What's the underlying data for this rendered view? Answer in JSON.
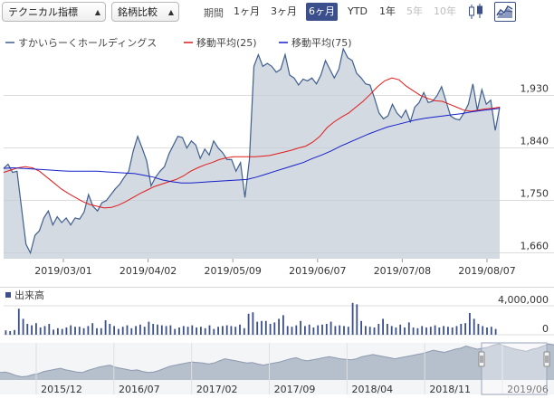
{
  "toolbar": {
    "indicator_select": "テクニカル指標",
    "compare_select": "銘柄比較",
    "period_label": "期間",
    "periods": [
      "1ヶ月",
      "3ヶ月",
      "6ヶ月",
      "YTD",
      "1年",
      "5年",
      "10年"
    ],
    "active_period": "6ヶ月",
    "disabled_periods": [
      "5年",
      "10年"
    ],
    "chart_type_icons": [
      "candlestick-icon",
      "area-line-icon"
    ],
    "active_chart_type": "area-line-icon"
  },
  "legend": {
    "price": "すかいらーくホールディングス",
    "ma25": "移動平均(25)",
    "ma75": "移動平均(75)"
  },
  "colors": {
    "price_line": "#3f5f8f",
    "price_fill": "#c5cdd8",
    "ma25": "#e11b1b",
    "ma75": "#1520c8",
    "volume": "#3a4f8c",
    "active": "#3a4f8c"
  },
  "chart_data": [
    {
      "type": "area",
      "x_labels": [
        "2019/03/01",
        "2019/04/02",
        "2019/05/09",
        "2019/06/07",
        "2019/07/08",
        "2019/08/07"
      ],
      "yticks": [
        1660,
        1750,
        1840,
        1930
      ],
      "ylim": [
        1650,
        2010
      ],
      "series": [
        {
          "name": "すかいらーくホールディングス",
          "values": [
            1805,
            1812,
            1798,
            1800,
            1738,
            1675,
            1660,
            1690,
            1698,
            1720,
            1732,
            1708,
            1722,
            1712,
            1720,
            1708,
            1720,
            1718,
            1730,
            1760,
            1740,
            1732,
            1746,
            1750,
            1760,
            1770,
            1778,
            1790,
            1800,
            1835,
            1860,
            1840,
            1818,
            1775,
            1790,
            1800,
            1808,
            1830,
            1845,
            1860,
            1858,
            1840,
            1852,
            1845,
            1822,
            1838,
            1828,
            1852,
            1840,
            1832,
            1820,
            1820,
            1800,
            1815,
            1755,
            1820,
            1980,
            2000,
            1980,
            1985,
            1980,
            1970,
            1975,
            2000,
            1965,
            1960,
            1948,
            1958,
            1955,
            1960,
            1950,
            1965,
            1990,
            1975,
            1960,
            1975,
            2010,
            1995,
            1990,
            1968,
            1960,
            1950,
            1948,
            1925,
            1900,
            1890,
            1895,
            1915,
            1900,
            1892,
            1905,
            1885,
            1910,
            1918,
            1935,
            1918,
            1920,
            1930,
            1945,
            1920,
            1895,
            1890,
            1888,
            1900,
            1915,
            1950,
            1905,
            1940,
            1915,
            1922,
            1870,
            1910
          ],
          "visible_days_only": true
        },
        {
          "name": "移動平均(25)",
          "values": [
            1798,
            1802,
            1806,
            1808,
            1806,
            1800,
            1790,
            1780,
            1770,
            1762,
            1755,
            1748,
            1743,
            1740,
            1737,
            1738,
            1742,
            1748,
            1755,
            1762,
            1768,
            1774,
            1778,
            1782,
            1786,
            1792,
            1800,
            1806,
            1811,
            1815,
            1820,
            1823,
            1825,
            1825,
            1825,
            1825,
            1826,
            1827,
            1830,
            1833,
            1836,
            1840,
            1843,
            1850,
            1860,
            1875,
            1885,
            1893,
            1900,
            1910,
            1920,
            1932,
            1945,
            1955,
            1960,
            1957,
            1946,
            1938,
            1930,
            1925,
            1921,
            1920,
            1915,
            1910,
            1905,
            1903,
            1905,
            1907,
            1908,
            1910
          ]
        },
        {
          "name": "移動平均(75)",
          "values": [
            1805,
            1806,
            1805,
            1804,
            1803,
            1802,
            1801,
            1800,
            1800,
            1800,
            1800,
            1799,
            1798,
            1797,
            1796,
            1793,
            1790,
            1785,
            1782,
            1780,
            1780,
            1781,
            1782,
            1783,
            1784,
            1785,
            1786,
            1790,
            1795,
            1800,
            1805,
            1810,
            1815,
            1822,
            1828,
            1835,
            1843,
            1850,
            1857,
            1864,
            1870,
            1876,
            1880,
            1884,
            1888,
            1891,
            1893,
            1895,
            1897,
            1899,
            1902,
            1904,
            1906,
            1908
          ]
        }
      ]
    },
    {
      "type": "bar",
      "title": "出来高",
      "yticks": [
        0,
        4000000
      ],
      "ylim": [
        0,
        4500000
      ],
      "values": [
        600000,
        500000,
        650000,
        3600000,
        2200000,
        1500000,
        1300000,
        1600000,
        1000000,
        1200000,
        1500000,
        700000,
        900000,
        800000,
        1000000,
        1300000,
        1100000,
        1100000,
        900000,
        1200000,
        1600000,
        900000,
        900000,
        2000000,
        1500000,
        1200000,
        800000,
        1100000,
        1300000,
        900000,
        1200000,
        1400000,
        1100000,
        1800000,
        1500000,
        1400000,
        1300000,
        1200000,
        1300000,
        800000,
        1000000,
        1200000,
        1100000,
        1300000,
        1000000,
        1100000,
        900000,
        1300000,
        800000,
        1100000,
        1200000,
        1300000,
        1200000,
        1100000,
        1400000,
        900000,
        2900000,
        3100000,
        1800000,
        1900000,
        1900000,
        1500000,
        1700000,
        2200000,
        2700000,
        1200000,
        1100000,
        1300000,
        1900000,
        1200000,
        1400000,
        1000000,
        1300000,
        1400000,
        1500000,
        1800000,
        1200000,
        1300000,
        1200000,
        1100000,
        4400000,
        4200000,
        1900000,
        1200000,
        1100000,
        1000000,
        1500000,
        2200000,
        1500000,
        1200000,
        1000000,
        1400000,
        1000000,
        1700000,
        1000000,
        900000,
        1200000,
        1000000,
        1100000,
        1300000,
        1000000,
        1200000,
        1100000,
        1000000,
        1200000,
        1500000,
        1600000,
        3000000,
        2200000,
        1500000,
        1200000,
        1000000,
        1100000,
        800000
      ]
    },
    {
      "type": "area",
      "title": "navigator",
      "x_labels": [
        "2015/12",
        "2016/07",
        "2017/02",
        "2017/09",
        "2018/04",
        "2018/11",
        "2019/06"
      ],
      "values": [
        1460,
        1470,
        1440,
        1400,
        1380,
        1390,
        1420,
        1440,
        1480,
        1500,
        1520,
        1540,
        1510,
        1490,
        1470,
        1460,
        1500,
        1530,
        1560,
        1580,
        1600,
        1560,
        1540,
        1520,
        1500,
        1510,
        1480,
        1460,
        1470,
        1500,
        1540,
        1580,
        1600,
        1620,
        1640,
        1660,
        1650,
        1640,
        1620,
        1640,
        1680,
        1720,
        1700,
        1680,
        1660,
        1640,
        1650,
        1620,
        1600,
        1620,
        1640,
        1660,
        1690,
        1720,
        1740,
        1700,
        1680,
        1700,
        1720,
        1740,
        1760,
        1740,
        1720,
        1710,
        1700,
        1720,
        1760,
        1780,
        1800,
        1780,
        1760,
        1740,
        1720,
        1740,
        1760,
        1780,
        1800,
        1820,
        1850,
        1880,
        1860,
        1840,
        1870,
        1900,
        1920,
        1960,
        1930,
        1900,
        1920,
        1940,
        1980,
        2000,
        1960,
        1930,
        1900,
        1880,
        1860,
        1900,
        1920,
        1960,
        2000,
        1980
      ]
    }
  ]
}
